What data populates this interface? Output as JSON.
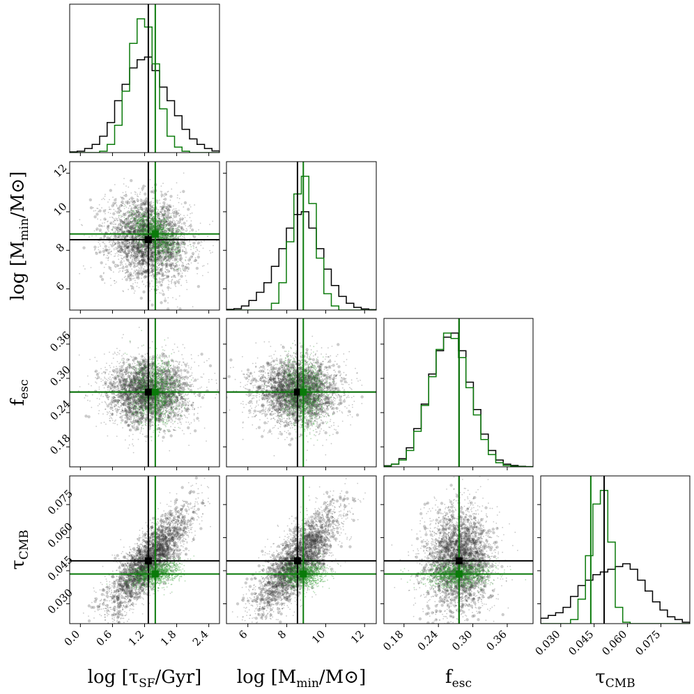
{
  "chart_data": {
    "type": "corner",
    "parameters": [
      {
        "key": "tau_sf",
        "label_main": "log [τ",
        "label_sub": "SF",
        "label_tail": "/Gyr]",
        "range": [
          -0.2,
          2.6
        ],
        "ticks": [
          "0.0",
          "0.6",
          "1.2",
          "1.8",
          "2.4"
        ],
        "tick_values": [
          0.0,
          0.6,
          1.2,
          1.8,
          2.4
        ]
      },
      {
        "key": "m_min",
        "label_main": "log [M",
        "label_sub": "min",
        "label_tail": "/M⊙]",
        "range": [
          4.9,
          12.6
        ],
        "ticks": [
          "6",
          "8",
          "10",
          "12"
        ],
        "tick_values": [
          6,
          8,
          10,
          12
        ]
      },
      {
        "key": "f_esc",
        "label_main": "f",
        "label_sub": "esc",
        "label_tail": "",
        "range": [
          0.145,
          0.405
        ],
        "ticks": [
          "0.18",
          "0.24",
          "0.30",
          "0.36"
        ],
        "tick_values": [
          0.18,
          0.24,
          0.3,
          0.36
        ]
      },
      {
        "key": "tau_cmb",
        "label_main": "τ",
        "label_sub": "CMB",
        "label_tail": "",
        "range": [
          0.021,
          0.088
        ],
        "ticks": [
          "0.030",
          "0.045",
          "0.060",
          "0.075"
        ],
        "tick_values": [
          0.03,
          0.045,
          0.06,
          0.075
        ]
      }
    ],
    "series": [
      {
        "color": "#000000",
        "truth": [
          1.27,
          8.55,
          0.276,
          0.0495
        ],
        "sigma": [
          0.4,
          1.1,
          0.03,
          0.012
        ]
      },
      {
        "color": "#0a7a0a",
        "truth": [
          1.4,
          8.85,
          0.276,
          0.0435
        ],
        "sigma": [
          0.22,
          0.55,
          0.028,
          0.003
        ]
      }
    ],
    "hist_black": {
      "tau_sf": [
        0.005,
        0.01,
        0.03,
        0.06,
        0.12,
        0.22,
        0.38,
        0.5,
        0.62,
        0.68,
        0.7,
        0.6,
        0.48,
        0.38,
        0.27,
        0.17,
        0.1,
        0.06,
        0.03,
        0.012
      ],
      "m_min": [
        0.005,
        0.01,
        0.03,
        0.07,
        0.13,
        0.2,
        0.32,
        0.45,
        0.6,
        0.7,
        0.72,
        0.6,
        0.45,
        0.3,
        0.18,
        0.1,
        0.05,
        0.02,
        0.008,
        0.003
      ],
      "f_esc": [
        0.008,
        0.02,
        0.06,
        0.14,
        0.28,
        0.46,
        0.68,
        0.85,
        0.95,
        0.98,
        0.85,
        0.62,
        0.42,
        0.24,
        0.12,
        0.05,
        0.02,
        0.01,
        0.004,
        0.002
      ],
      "tau_cmb": [
        0.04,
        0.06,
        0.08,
        0.12,
        0.2,
        0.28,
        0.32,
        0.36,
        0.38,
        0.4,
        0.42,
        0.44,
        0.4,
        0.32,
        0.24,
        0.16,
        0.1,
        0.05,
        0.03,
        0.01
      ]
    },
    "hist_green": {
      "tau_sf": [
        0,
        0,
        0,
        0,
        0.01,
        0.06,
        0.2,
        0.45,
        0.8,
        0.98,
        0.92,
        0.65,
        0.32,
        0.12,
        0.04,
        0.01,
        0,
        0,
        0,
        0
      ],
      "m_min": [
        0,
        0,
        0,
        0,
        0,
        0,
        0.05,
        0.2,
        0.5,
        0.85,
        0.98,
        0.78,
        0.38,
        0.12,
        0.03,
        0,
        0,
        0,
        0,
        0
      ],
      "f_esc": [
        0.005,
        0.02,
        0.05,
        0.12,
        0.26,
        0.45,
        0.66,
        0.86,
        0.98,
        0.94,
        0.8,
        0.58,
        0.38,
        0.2,
        0.09,
        0.03,
        0.01,
        0.004,
        0.002,
        0.001
      ],
      "tau_cmb": [
        0,
        0,
        0,
        0,
        0.03,
        0.18,
        0.5,
        0.88,
        0.98,
        0.6,
        0.12,
        0.01,
        0,
        0,
        0,
        0,
        0,
        0,
        0,
        0
      ]
    }
  }
}
